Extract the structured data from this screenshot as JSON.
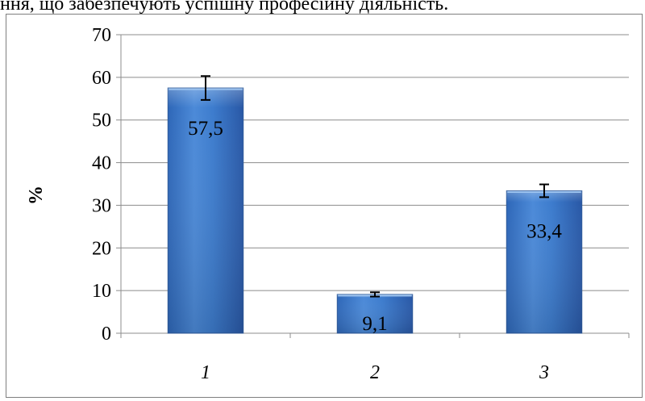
{
  "header": {
    "text": "ння, що забезпечують успішну професійну діяльність."
  },
  "chart_data": {
    "type": "bar",
    "categories": [
      "1",
      "2",
      "3"
    ],
    "values": [
      57.5,
      9.1,
      33.4
    ],
    "data_labels": [
      "57,5",
      "9,1",
      "33,4"
    ],
    "error_bars": [
      2.8,
      0.5,
      1.5
    ],
    "title": "",
    "xlabel": "",
    "ylabel": "%",
    "ylim": [
      0,
      70
    ],
    "yticks": [
      0,
      10,
      20,
      30,
      40,
      50,
      60,
      70
    ],
    "grid": true,
    "legend": "none",
    "colors": {
      "bar_top": "#5b96dc",
      "bar_mid": "#3f7fcf",
      "bar_bottom": "#2a62b2",
      "bar_edge": "#2f5a9a",
      "grid": "#8c8c8c"
    }
  }
}
